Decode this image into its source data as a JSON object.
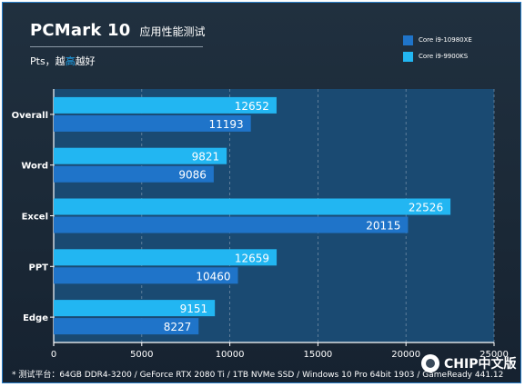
{
  "header": {
    "title": "PCMark 10",
    "title_sub": "应用性能测试",
    "subtitle_prefix": "Pts，越",
    "subtitle_highlight": "高",
    "subtitle_suffix": "越好"
  },
  "footnote": "* 测试平台：64GB DDR4-3200 / GeForce RTX 2080 Ti / 1TB NVMe SSD / Windows 10 Pro 64bit 1903 / GameReady 441.12",
  "watermark": {
    "text": "CHIP中文版",
    "icon": "wechat-icon"
  },
  "colors": {
    "background": "#1b2937",
    "plot_area": "#1a4a72",
    "series_1": "#1f74c9",
    "series_2": "#22b6f2"
  },
  "chart_data": {
    "type": "bar",
    "orientation": "horizontal",
    "title": "PCMark 10 应用性能测试",
    "subtitle": "Pts，越高越好",
    "categories": [
      "Overall",
      "Word",
      "Excel",
      "PPT",
      "Edge"
    ],
    "series": [
      {
        "name": "Core i9-10980XE",
        "values": [
          11193,
          9086,
          20115,
          10460,
          8227
        ]
      },
      {
        "name": "Core i9-9900KS",
        "values": [
          12652,
          9821,
          22526,
          12659,
          9151
        ]
      }
    ],
    "xlim": [
      0,
      25000
    ],
    "xticks": [
      0,
      5000,
      10000,
      15000,
      20000,
      25000
    ],
    "grid": true,
    "legend_position": "top-right"
  }
}
